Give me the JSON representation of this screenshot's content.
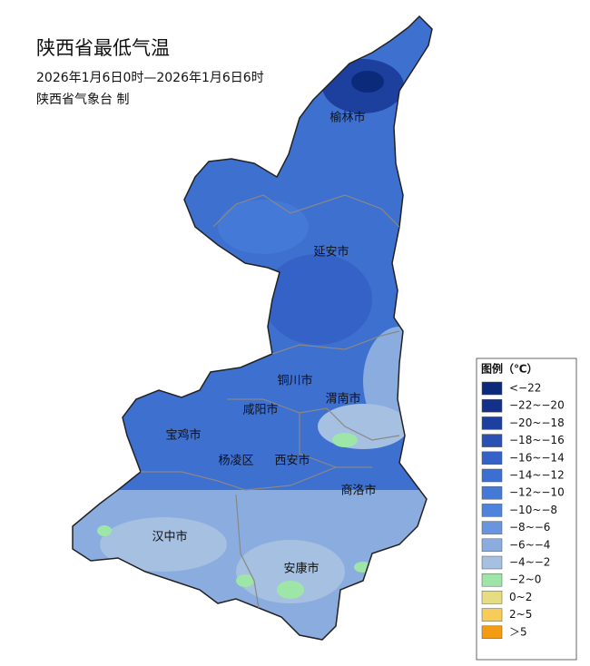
{
  "header": {
    "title": "陕西省最低气温",
    "time_range": "2026年1月6日0时—2026年1月6日6时",
    "issuer": "陕西省气象台 制"
  },
  "cities": [
    "榆林市",
    "延安市",
    "铜川市",
    "渭南市",
    "咸阳市",
    "宝鸡市",
    "杨凌区",
    "西安市",
    "商洛市",
    "汉中市",
    "安康市"
  ],
  "legend": {
    "title": "图例（℃）",
    "items": [
      {
        "label": "<−22",
        "color": "#0b2a7a"
      },
      {
        "label": "−22~−20",
        "color": "#13308a"
      },
      {
        "label": "−20~−18",
        "color": "#1d3f9e"
      },
      {
        "label": "−18~−16",
        "color": "#2a50b4"
      },
      {
        "label": "−16~−14",
        "color": "#3562c6"
      },
      {
        "label": "−14~−12",
        "color": "#3d6fd2"
      },
      {
        "label": "−12~−10",
        "color": "#4479d8"
      },
      {
        "label": "−10~−8",
        "color": "#4f83dc"
      },
      {
        "label": "−8~−6",
        "color": "#6995e0"
      },
      {
        "label": "−6~−4",
        "color": "#8aacdf"
      },
      {
        "label": "−4~−2",
        "color": "#a5c0e0"
      },
      {
        "label": "−2~0",
        "color": "#9ee6a8"
      },
      {
        "label": "0~2",
        "color": "#e6dc82"
      },
      {
        "label": "2~5",
        "color": "#f8cc58"
      },
      {
        "label": "＞5",
        "color": "#f39c12"
      }
    ]
  }
}
